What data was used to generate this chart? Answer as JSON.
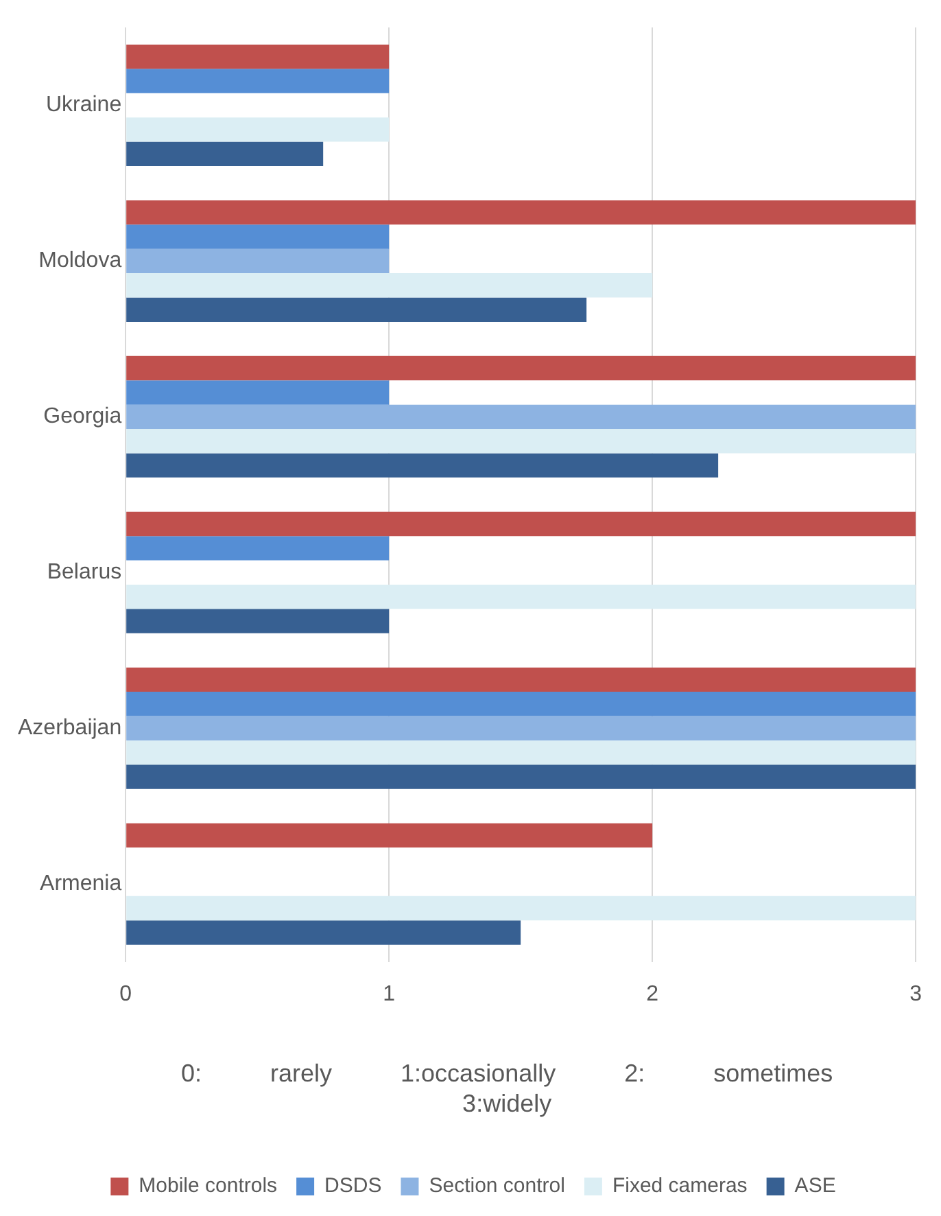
{
  "chart_data": {
    "type": "bar",
    "orientation": "horizontal",
    "categories": [
      "Ukraine",
      "Moldova",
      "Georgia",
      "Belarus",
      "Azerbaijan",
      "Armenia"
    ],
    "series": [
      {
        "name": "Mobile controls",
        "color": "#c0504d",
        "values": [
          1,
          3,
          3,
          3,
          3,
          2
        ]
      },
      {
        "name": "DSDS",
        "color": "#558ed5",
        "values": [
          1,
          1,
          1,
          1,
          3,
          0
        ]
      },
      {
        "name": "Section control",
        "color": "#8db3e2",
        "values": [
          0,
          1,
          3,
          0,
          3,
          0
        ]
      },
      {
        "name": "Fixed cameras",
        "color": "#dbeef4",
        "values": [
          1,
          2,
          3,
          3,
          3,
          3
        ]
      },
      {
        "name": "ASE",
        "color": "#376092",
        "values": [
          0.75,
          1.75,
          2.25,
          1,
          3,
          1.5
        ]
      }
    ],
    "xlim": [
      0,
      3
    ],
    "xticks": [
      0,
      1,
      2,
      3
    ],
    "grid": "x",
    "legend": "bottom",
    "annotations": [
      "0: rarely 1:occasionally 2: sometimes 3:widely"
    ]
  }
}
